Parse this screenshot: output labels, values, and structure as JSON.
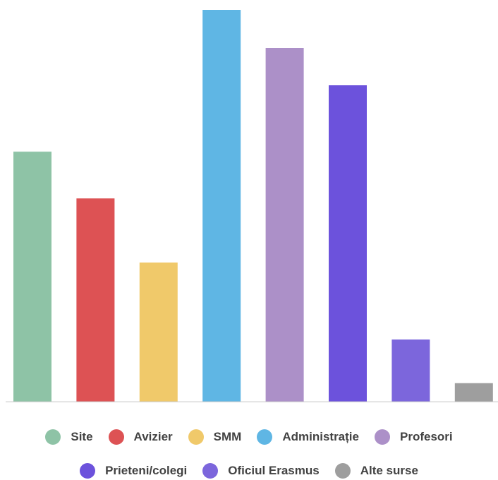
{
  "chart_data": {
    "type": "bar",
    "title": "",
    "xlabel": "",
    "ylabel": "",
    "categories": [
      "Site",
      "Avizier",
      "SMM",
      "Administrație",
      "Profesori",
      "Prieteni/colegi",
      "Oficiul Erasmus",
      "Alte surse"
    ],
    "values": [
      67,
      54.5,
      37.3,
      105,
      94.8,
      84.8,
      16.7,
      5
    ],
    "colors": [
      "#8ec3a6",
      "#dd5254",
      "#f0c96a",
      "#5fb6e4",
      "#ac90c8",
      "#6c52dc",
      "#7c66dc",
      "#9e9e9e"
    ],
    "ylim": [
      0,
      105
    ],
    "grid": false,
    "legend": "bottom",
    "legend_rows": [
      [
        0,
        1,
        2,
        3,
        4
      ],
      [
        5,
        6,
        7
      ]
    ]
  }
}
